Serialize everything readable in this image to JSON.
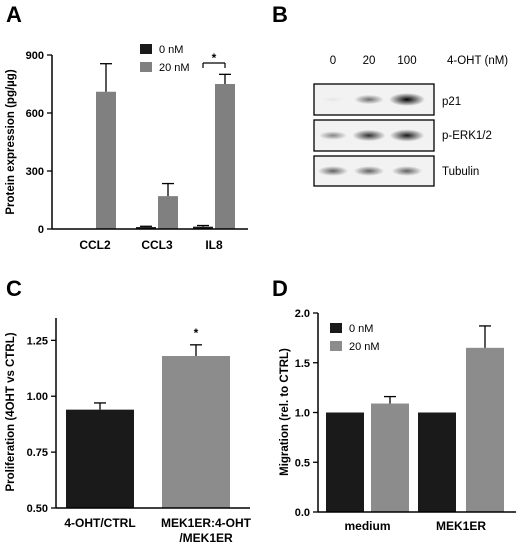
{
  "colors": {
    "zero": "#1a1a1a",
    "twenty": "#808080",
    "gray": "#8c8c8c",
    "axis": "#000000"
  },
  "panels": {
    "a": {
      "label": "A"
    },
    "b": {
      "label": "B"
    },
    "c": {
      "label": "C"
    },
    "d": {
      "label": "D"
    }
  },
  "blot": {
    "header": {
      "doses": [
        "0",
        "20",
        "100"
      ],
      "unit": "4-OHT (nM)"
    },
    "bands": [
      "p21",
      "p-ERK1/2",
      "Tubulin"
    ],
    "intensity": [
      [
        0.05,
        0.55,
        1.0
      ],
      [
        0.45,
        0.8,
        0.9
      ],
      [
        0.6,
        0.6,
        0.6
      ]
    ]
  },
  "chart_data": [
    {
      "panel": "A",
      "type": "bar",
      "ylabel": "Protein expression (pg/µg)",
      "ylim": [
        0,
        900
      ],
      "yticks": [
        "0",
        "300",
        "600",
        "900"
      ],
      "categories": [
        "CCL2",
        "CCL3",
        "IL8"
      ],
      "series": [
        {
          "name": "0 nM",
          "values": [
            0,
            10,
            12
          ],
          "errors": [
            0,
            4,
            6
          ]
        },
        {
          "name": "20 nM",
          "values": [
            710,
            170,
            750
          ],
          "errors": [
            145,
            65,
            50
          ]
        }
      ],
      "annotation": {
        "text": "*",
        "category": "IL8"
      },
      "legend": "top-right"
    },
    {
      "panel": "C",
      "type": "bar",
      "ylabel": "Proliferation (4OHT vs CTRL)",
      "ylim": [
        0.5,
        1.35
      ],
      "yticks": [
        "0.50",
        "0.75",
        "1.00",
        "1.25"
      ],
      "categories": [
        "4-OHT/CTRL",
        "MEK1ER:4-OHT/MEK1ER"
      ],
      "category_lines": [
        [
          "4-OHT/CTRL"
        ],
        [
          "MEK1ER:4-OHT",
          "/MEK1ER"
        ]
      ],
      "values": [
        0.94,
        1.18
      ],
      "errors": [
        0.03,
        0.05
      ],
      "annotation": {
        "text": "*",
        "category": "MEK1ER:4-OHT/MEK1ER"
      }
    },
    {
      "panel": "D",
      "type": "bar",
      "ylabel": "Migration (rel. to CTRL)",
      "ylim": [
        0,
        2.0
      ],
      "yticks": [
        "0.0",
        "0.5",
        "1.0",
        "1.5",
        "2.0"
      ],
      "categories": [
        "medium",
        "MEK1ER"
      ],
      "series": [
        {
          "name": "0 nM",
          "values": [
            1.0,
            1.0
          ],
          "errors": [
            0,
            0
          ]
        },
        {
          "name": "20 nM",
          "values": [
            1.09,
            1.65
          ],
          "errors": [
            0.07,
            0.22
          ]
        }
      ],
      "legend": "top-left"
    }
  ]
}
